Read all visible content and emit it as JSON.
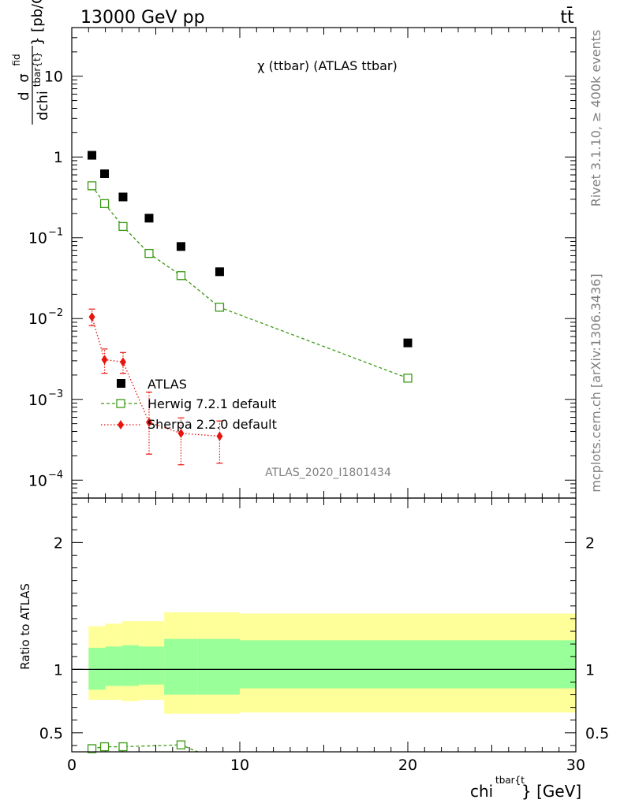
{
  "header": {
    "left": "13000 GeV pp",
    "right": "tt̄"
  },
  "side_labels": {
    "rivet": "Rivet 3.1.10, ≥ 400k events",
    "mcplots": "mcplots.cern.ch [arXiv:1306.3436]"
  },
  "watermark": "ATLAS_2020_I1801434",
  "colors": {
    "atlas": "#000000",
    "herwig": "#3a9a14",
    "sherpa": "#e8140e",
    "band_inner": "#99ff99",
    "band_outer": "#ffff99"
  },
  "chart_data": [
    {
      "type": "scatter",
      "title": "χ (ttbar) (ATLAS ttbar)",
      "ylabel": "dσ^fid / dchi^tbar{t} [pb/GeV]",
      "ylabel_parts": {
        "d_top": "d",
        "sigma": "σ",
        "fid": "fid",
        "d_bottom": "dchi",
        "tbar": "tbar{t}",
        "unit": "} [pb/GeV]"
      },
      "yscale": "log",
      "xlim": [
        0,
        30
      ],
      "ylim": [
        6e-05,
        40
      ],
      "yticks": [
        {
          "value": 10,
          "label": "10"
        },
        {
          "value": 1,
          "label": "1"
        },
        {
          "value": 0.1,
          "base": "10",
          "exp": "−1"
        },
        {
          "value": 0.01,
          "base": "10",
          "exp": "−2"
        },
        {
          "value": 0.001,
          "base": "10",
          "exp": "−3"
        },
        {
          "value": 0.0001,
          "base": "10",
          "exp": "−4"
        }
      ],
      "series": [
        {
          "name": "ATLAS",
          "marker": "square-filled",
          "x": [
            1.2,
            1.95,
            3.05,
            4.6,
            6.5,
            8.8,
            20.0
          ],
          "y": [
            1.05,
            0.62,
            0.32,
            0.175,
            0.078,
            0.038,
            0.005
          ]
        },
        {
          "name": "Herwig 7.2.1 default",
          "marker": "square-open",
          "x": [
            1.2,
            1.95,
            3.05,
            4.6,
            6.5,
            8.8,
            20.0
          ],
          "y": [
            0.44,
            0.265,
            0.138,
            0.064,
            0.034,
            0.0138,
            0.00183
          ]
        },
        {
          "name": "Sherpa 2.2.0 default",
          "marker": "diamond-filled",
          "x": [
            1.2,
            1.95,
            3.05,
            4.6,
            6.5,
            8.8
          ],
          "y": [
            0.0105,
            0.0031,
            0.0029,
            0.00052,
            0.00038,
            0.00035
          ],
          "yerr_low": [
            0.0082,
            0.0021,
            0.0021,
            0.00021,
            0.000155,
            0.000162
          ],
          "yerr_high": [
            0.0131,
            0.0042,
            0.0038,
            0.00123,
            0.00059,
            0.00054
          ]
        }
      ],
      "legend": "center-left"
    },
    {
      "type": "scatter",
      "ylabel": "Ratio to ATLAS",
      "xlabel": "chi^tbar{t} [GeV]",
      "xlabel_parts": {
        "chi": "chi",
        "tbar": "tbar{t",
        "rest": "} [GeV]"
      },
      "xlim": [
        0,
        30
      ],
      "ylim": [
        0.35,
        2.35
      ],
      "xticks": [
        0,
        10,
        20,
        30
      ],
      "yticks": [
        0.5,
        1,
        2
      ],
      "bins": [
        [
          1,
          2
        ],
        [
          2,
          3
        ],
        [
          3,
          4
        ],
        [
          4,
          5.5
        ],
        [
          5.5,
          7.5
        ],
        [
          7.5,
          10
        ],
        [
          10,
          30
        ]
      ],
      "band_inner": [
        [
          0.84,
          1.17
        ],
        [
          0.87,
          1.18
        ],
        [
          0.87,
          1.19
        ],
        [
          0.88,
          1.18
        ],
        [
          0.8,
          1.24
        ],
        [
          0.8,
          1.24
        ],
        [
          0.85,
          1.23
        ]
      ],
      "band_outer": [
        [
          0.76,
          1.34
        ],
        [
          0.76,
          1.36
        ],
        [
          0.75,
          1.38
        ],
        [
          0.76,
          1.38
        ],
        [
          0.65,
          1.45
        ],
        [
          0.65,
          1.45
        ],
        [
          0.66,
          1.44
        ]
      ],
      "herwig_ratio": {
        "x": [
          1.2,
          1.95,
          3.05,
          6.5
        ],
        "y": [
          0.375,
          0.39,
          0.39,
          0.405
        ]
      },
      "reference_line": 1
    }
  ]
}
